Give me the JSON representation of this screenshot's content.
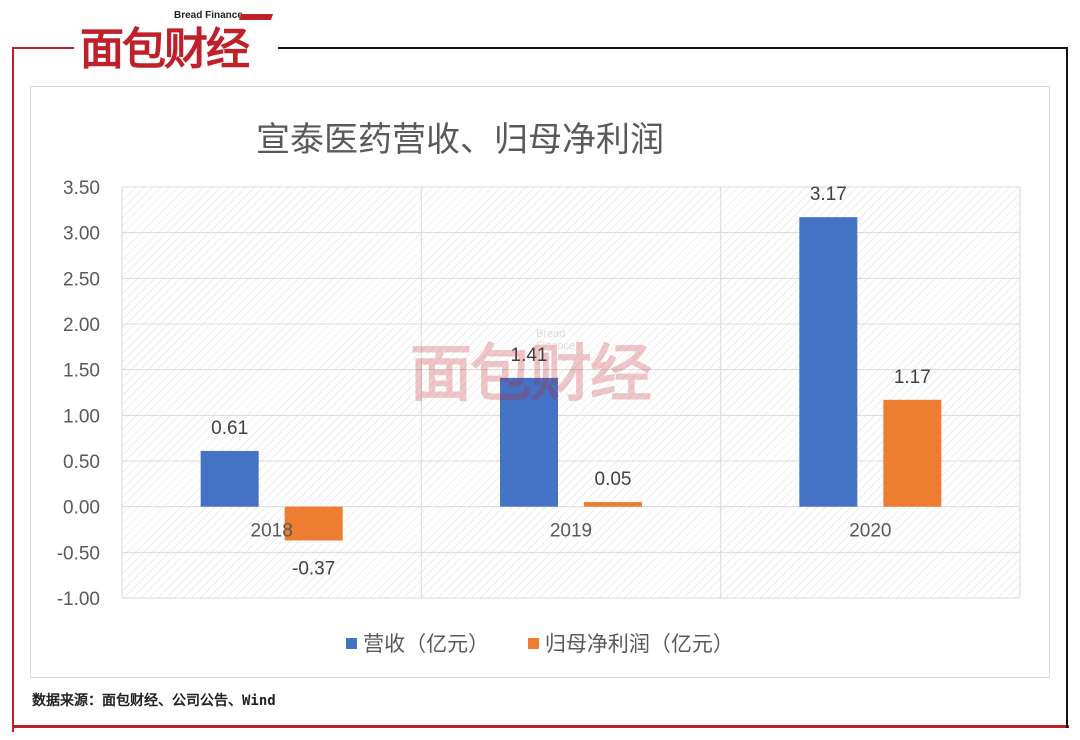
{
  "brand": {
    "name_en": "Bread Finance",
    "name_cn": "面包财经"
  },
  "source": "数据来源：面包财经、公司公告、Wind",
  "colors": {
    "revenue": "#4472C4",
    "profit": "#ED7D31",
    "brand": "#C0202A"
  },
  "chart_data": {
    "type": "bar",
    "title": "宣泰医药营收、归母净利润",
    "categories": [
      "2018",
      "2019",
      "2020"
    ],
    "series": [
      {
        "name": "营收（亿元）",
        "values": [
          0.61,
          1.41,
          3.17
        ]
      },
      {
        "name": "归母净利润（亿元）",
        "values": [
          -0.37,
          0.05,
          1.17
        ]
      }
    ],
    "data_labels": [
      [
        "0.61",
        "1.41",
        "3.17"
      ],
      [
        "-0.37",
        "0.05",
        "1.17"
      ]
    ],
    "ylim": [
      -1.0,
      3.5
    ],
    "yticks": [
      "3.50",
      "3.00",
      "2.50",
      "2.00",
      "1.50",
      "1.00",
      "0.50",
      "0.00",
      "-0.50",
      "-1.00"
    ],
    "grid": true,
    "legend": "bottom",
    "xlabel": "",
    "ylabel": ""
  }
}
